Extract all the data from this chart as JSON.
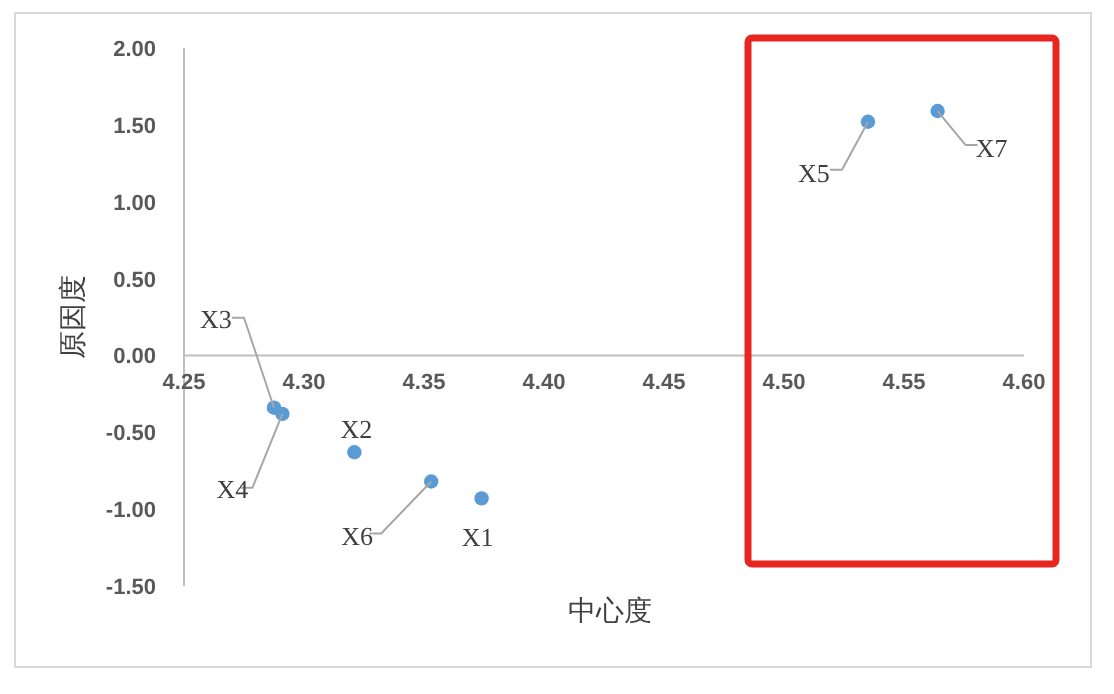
{
  "chart_data": {
    "type": "scatter",
    "xlabel": "中心度",
    "ylabel": "原因度",
    "x": [
      4.374,
      4.321,
      4.2875,
      4.291,
      4.535,
      4.353,
      4.564
    ],
    "series": [
      {
        "color": "#5b9bd5",
        "values": [
          -0.93,
          -0.63,
          -0.34,
          -0.38,
          1.52,
          -0.82,
          1.59
        ]
      }
    ],
    "annotations": [
      {
        "text": "X1",
        "x": 4.374,
        "y": -0.93
      },
      {
        "text": "X2",
        "x": 4.321,
        "y": -0.63
      },
      {
        "text": "X3",
        "x": 4.2875,
        "y": -0.34
      },
      {
        "text": "X4",
        "x": 4.291,
        "y": -0.38
      },
      {
        "text": "X5",
        "x": 4.535,
        "y": 1.52
      },
      {
        "text": "X6",
        "x": 4.353,
        "y": -0.82
      },
      {
        "text": "X7",
        "x": 4.564,
        "y": 1.59
      }
    ],
    "xlim": [
      4.25,
      4.6
    ],
    "ylim": [
      -1.5,
      2.0
    ],
    "xticks": [
      {
        "value": 4.25,
        "label": "4.25"
      },
      {
        "value": 4.3,
        "label": "4.30"
      },
      {
        "value": 4.35,
        "label": "4.35"
      },
      {
        "value": 4.4,
        "label": "4.40"
      },
      {
        "value": 4.45,
        "label": "4.45"
      },
      {
        "value": 4.5,
        "label": "4.50"
      },
      {
        "value": 4.55,
        "label": "4.55"
      },
      {
        "value": 4.6,
        "label": "4.60"
      }
    ],
    "yticks": [
      {
        "value": 2.0,
        "label": "2.00"
      },
      {
        "value": 1.5,
        "label": "1.50"
      },
      {
        "value": 1.0,
        "label": "1.00"
      },
      {
        "value": 0.5,
        "label": "0.50"
      },
      {
        "value": 0.0,
        "label": "0.00"
      },
      {
        "value": -0.5,
        "label": "-0.50"
      },
      {
        "value": -1.0,
        "label": "-1.00"
      },
      {
        "value": -1.5,
        "label": "-1.50"
      }
    ],
    "marker": "circle",
    "grid": false
  }
}
